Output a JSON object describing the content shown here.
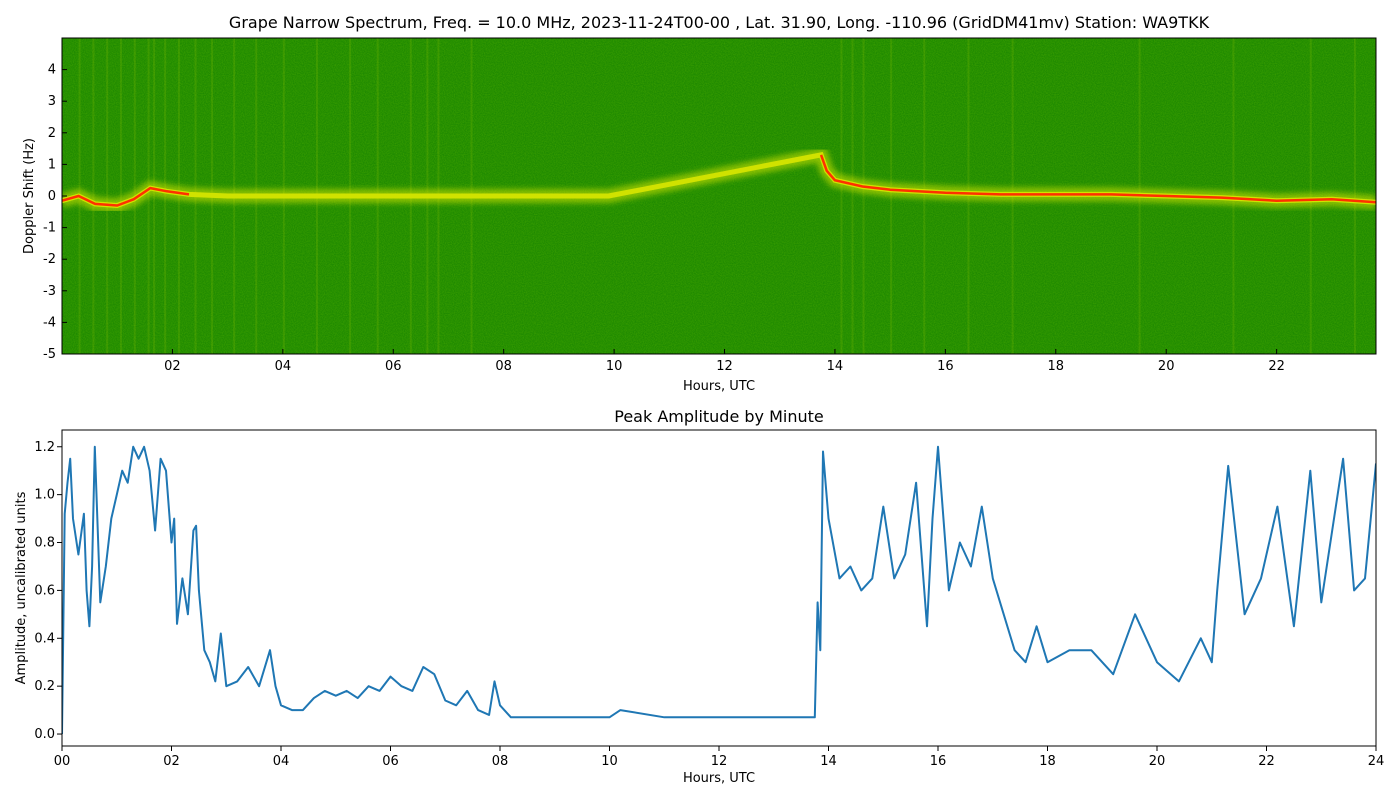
{
  "chart_data": [
    {
      "type": "heatmap",
      "title": "Grape Narrow Spectrum, Freq. = 10.0 MHz, 2023-11-24T00-00 , Lat.  31.90, Long. -110.96 (GridDM41mv) Station: WA9TKK",
      "xlabel": "Hours, UTC",
      "ylabel": "Doppler Shift (Hz)",
      "xlim": [
        0,
        23.8
      ],
      "ylim": [
        -5,
        5
      ],
      "x_ticks": [
        {
          "value": 2,
          "label": "02"
        },
        {
          "value": 4,
          "label": "04"
        },
        {
          "value": 6,
          "label": "06"
        },
        {
          "value": 8,
          "label": "08"
        },
        {
          "value": 10,
          "label": "10"
        },
        {
          "value": 12,
          "label": "12"
        },
        {
          "value": 14,
          "label": "14"
        },
        {
          "value": 16,
          "label": "16"
        },
        {
          "value": 18,
          "label": "18"
        },
        {
          "value": 20,
          "label": "20"
        },
        {
          "value": 22,
          "label": "22"
        }
      ],
      "y_ticks": [
        {
          "value": -5,
          "label": "-5"
        },
        {
          "value": -4,
          "label": "-4"
        },
        {
          "value": -3,
          "label": "-3"
        },
        {
          "value": -2,
          "label": "-2"
        },
        {
          "value": -1,
          "label": "-1"
        },
        {
          "value": 0,
          "label": "0"
        },
        {
          "value": 1,
          "label": "1"
        },
        {
          "value": 2,
          "label": "2"
        },
        {
          "value": 3,
          "label": "3"
        },
        {
          "value": 4,
          "label": "4"
        }
      ],
      "colors": {
        "background": "#1f8a00",
        "mid": "#d8e600",
        "peak": "#ff3000"
      },
      "grid": false,
      "doppler_trace": {
        "x": [
          0.0,
          0.3,
          0.6,
          1.0,
          1.3,
          1.6,
          1.9,
          2.3,
          3.0,
          4.0,
          5.0,
          6.0,
          7.0,
          8.0,
          8.7,
          9.5,
          9.9,
          13.75,
          13.85,
          14.0,
          14.5,
          15.0,
          16.0,
          17.0,
          18.0,
          19.0,
          20.0,
          21.0,
          22.0,
          23.0,
          23.8
        ],
        "y": [
          -0.15,
          0.0,
          -0.25,
          -0.3,
          -0.1,
          0.25,
          0.15,
          0.05,
          0.0,
          0.0,
          0.0,
          0.0,
          0.0,
          0.0,
          0.0,
          0.0,
          0.0,
          1.3,
          0.8,
          0.5,
          0.3,
          0.2,
          0.1,
          0.05,
          0.05,
          0.05,
          0.0,
          -0.05,
          -0.15,
          -0.1,
          -0.2
        ]
      }
    },
    {
      "type": "line",
      "title": "Peak Amplitude by Minute",
      "xlabel": "Hours, UTC",
      "ylabel": "Amplitude, uncalibrated units",
      "xlim": [
        0,
        24
      ],
      "ylim": [
        -0.05,
        1.27
      ],
      "x_ticks": [
        {
          "value": 0,
          "label": "00"
        },
        {
          "value": 2,
          "label": "02"
        },
        {
          "value": 4,
          "label": "04"
        },
        {
          "value": 6,
          "label": "06"
        },
        {
          "value": 8,
          "label": "08"
        },
        {
          "value": 10,
          "label": "10"
        },
        {
          "value": 12,
          "label": "12"
        },
        {
          "value": 14,
          "label": "14"
        },
        {
          "value": 16,
          "label": "16"
        },
        {
          "value": 18,
          "label": "18"
        },
        {
          "value": 20,
          "label": "20"
        },
        {
          "value": 22,
          "label": "22"
        },
        {
          "value": 24,
          "label": "24"
        }
      ],
      "y_ticks": [
        {
          "value": 0.0,
          "label": "0.0"
        },
        {
          "value": 0.2,
          "label": "0.2"
        },
        {
          "value": 0.4,
          "label": "0.4"
        },
        {
          "value": 0.6,
          "label": "0.6"
        },
        {
          "value": 0.8,
          "label": "0.8"
        },
        {
          "value": 1.0,
          "label": "1.0"
        },
        {
          "value": 1.2,
          "label": "1.2"
        }
      ],
      "grid": false,
      "series": [
        {
          "color": "#1f77b4",
          "x": [
            0.0,
            0.05,
            0.1,
            0.15,
            0.2,
            0.3,
            0.4,
            0.45,
            0.5,
            0.55,
            0.6,
            0.7,
            0.8,
            0.9,
            1.0,
            1.1,
            1.2,
            1.3,
            1.4,
            1.5,
            1.6,
            1.7,
            1.8,
            1.9,
            2.0,
            2.05,
            2.1,
            2.2,
            2.3,
            2.4,
            2.45,
            2.5,
            2.6,
            2.7,
            2.8,
            2.9,
            3.0,
            3.2,
            3.4,
            3.6,
            3.8,
            3.9,
            4.0,
            4.2,
            4.4,
            4.6,
            4.8,
            5.0,
            5.2,
            5.4,
            5.6,
            5.8,
            6.0,
            6.2,
            6.4,
            6.6,
            6.8,
            7.0,
            7.2,
            7.4,
            7.6,
            7.8,
            7.9,
            8.0,
            8.2,
            8.4,
            9.0,
            10.0,
            10.2,
            11.0,
            12.0,
            13.0,
            13.5,
            13.75,
            13.8,
            13.85,
            13.9,
            14.0,
            14.2,
            14.4,
            14.6,
            14.8,
            15.0,
            15.2,
            15.4,
            15.6,
            15.8,
            15.9,
            16.0,
            16.2,
            16.4,
            16.6,
            16.8,
            17.0,
            17.2,
            17.4,
            17.6,
            17.8,
            18.0,
            18.4,
            18.8,
            19.2,
            19.6,
            20.0,
            20.4,
            20.8,
            21.0,
            21.1,
            21.3,
            21.6,
            21.9,
            22.2,
            22.5,
            22.8,
            23.0,
            23.2,
            23.4,
            23.6,
            23.8,
            24.0
          ],
          "values": [
            0.0,
            0.92,
            1.05,
            1.15,
            0.9,
            0.75,
            0.92,
            0.6,
            0.45,
            0.7,
            1.2,
            0.55,
            0.7,
            0.9,
            1.0,
            1.1,
            1.05,
            1.2,
            1.15,
            1.2,
            1.1,
            0.85,
            1.15,
            1.1,
            0.8,
            0.9,
            0.46,
            0.65,
            0.5,
            0.85,
            0.87,
            0.6,
            0.35,
            0.3,
            0.22,
            0.42,
            0.2,
            0.22,
            0.28,
            0.2,
            0.35,
            0.2,
            0.12,
            0.1,
            0.1,
            0.15,
            0.18,
            0.16,
            0.18,
            0.15,
            0.2,
            0.18,
            0.24,
            0.2,
            0.18,
            0.28,
            0.25,
            0.14,
            0.12,
            0.18,
            0.1,
            0.08,
            0.22,
            0.12,
            0.07,
            0.07,
            0.07,
            0.07,
            0.1,
            0.07,
            0.07,
            0.07,
            0.07,
            0.07,
            0.55,
            0.35,
            1.18,
            0.9,
            0.65,
            0.7,
            0.6,
            0.65,
            0.95,
            0.65,
            0.75,
            1.05,
            0.45,
            0.9,
            1.2,
            0.6,
            0.8,
            0.7,
            0.95,
            0.65,
            0.5,
            0.35,
            0.3,
            0.45,
            0.3,
            0.35,
            0.35,
            0.25,
            0.5,
            0.3,
            0.22,
            0.4,
            0.3,
            0.6,
            1.12,
            0.5,
            0.65,
            0.95,
            0.45,
            1.1,
            0.55,
            0.85,
            1.15,
            0.6,
            0.65,
            1.13
          ]
        }
      ]
    }
  ]
}
